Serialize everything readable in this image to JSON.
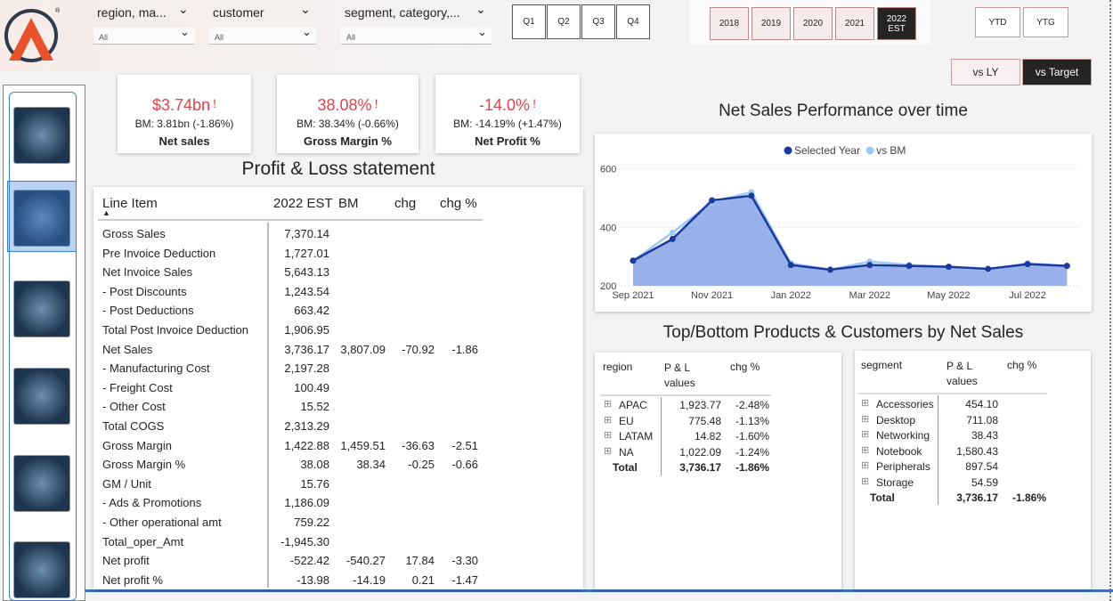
{
  "filters": [
    {
      "label": "region, ma...",
      "value": "All"
    },
    {
      "label": "customer",
      "value": "All"
    },
    {
      "label": "segment, category,...",
      "value": "All"
    }
  ],
  "quarters": [
    "Q1",
    "Q2",
    "Q3",
    "Q4"
  ],
  "years": [
    "2018",
    "2019",
    "2020",
    "2021",
    "2022 EST"
  ],
  "periods": [
    "YTD",
    "YTG"
  ],
  "compare": [
    "vs LY",
    "vs Target"
  ],
  "kpis": [
    {
      "value": "$3.74bn",
      "flag": "!",
      "bm": "BM: 3.81bn (-1.86%)",
      "label": "Net sales"
    },
    {
      "value": "38.08%",
      "flag": "!",
      "bm": "BM: 38.34% (-0.66%)",
      "label": "Gross Margin %"
    },
    {
      "value": "-14.0%",
      "flag": "!",
      "bm": "BM: -14.19% (+1.47%)",
      "label": "Net Profit %"
    }
  ],
  "pnl": {
    "title": "Profit & Loss statement",
    "columns": [
      "Line Item",
      "2022 EST",
      "BM",
      "chg",
      "chg %"
    ],
    "rows": [
      [
        "Gross Sales",
        "7,370.14"
      ],
      [
        "Pre Invoice Deduction",
        "1,727.01"
      ],
      [
        "Net Invoice Sales",
        "5,643.13"
      ],
      [
        "- Post Discounts",
        "1,243.54"
      ],
      [
        "- Post Deductions",
        "663.42"
      ],
      [
        "Total Post Invoice Deduction",
        "1,906.95"
      ],
      [
        "Net Sales",
        "3,736.17",
        "3,807.09",
        "-70.92",
        "-1.86"
      ],
      [
        "- Manufacturing Cost",
        "2,197.28"
      ],
      [
        "- Freight Cost",
        "100.49"
      ],
      [
        "- Other Cost",
        "15.52"
      ],
      [
        "Total COGS",
        "2,313.29"
      ],
      [
        "Gross Margin",
        "1,422.88",
        "1,459.51",
        "-36.63",
        "-2.51"
      ],
      [
        "Gross Margin %",
        "38.08",
        "38.34",
        "-0.25",
        "-0.66"
      ],
      [
        "GM / Unit",
        "15.76"
      ],
      [
        "- Ads & Promotions",
        "1,186.09"
      ],
      [
        "- Other operational amt",
        "759.22"
      ],
      [
        "Total_oper_Amt",
        "-1,945.30"
      ],
      [
        "Net profit",
        "-522.42",
        "-540.27",
        "17.84",
        "-3.30"
      ],
      [
        "Net profit %",
        "-13.98",
        "-14.19",
        "0.21",
        "-1.47"
      ]
    ]
  },
  "chart_data": {
    "type": "line",
    "title": "Net Sales Performance over time",
    "categories": [
      "Sep 2021",
      null,
      "Nov 2021",
      null,
      "Jan 2022",
      null,
      "Mar 2022",
      null,
      "May 2022",
      null,
      "Jul 2022",
      null
    ],
    "series": [
      {
        "name": "Selected Year",
        "color": "#1c3a9c",
        "values": [
          286,
          360,
          492,
          508,
          271,
          255,
          271,
          268,
          265,
          258,
          274,
          268
        ]
      },
      {
        "name": "vs BM",
        "color": "#9ccaf5",
        "values": [
          286,
          382,
          486,
          520,
          277,
          255,
          283,
          271,
          265,
          255,
          277,
          268
        ]
      }
    ],
    "ylim": [
      200,
      620
    ],
    "yticks": [
      200,
      400,
      600
    ],
    "grid": true
  },
  "topbottom": {
    "title": "Top/Bottom Products & Customers by Net Sales",
    "region": {
      "columns": [
        "region",
        "P & L values",
        "chg %"
      ],
      "rows": [
        [
          "APAC",
          "1,923.77",
          "-2.48%"
        ],
        [
          "EU",
          "775.48",
          "-1.13%"
        ],
        [
          "LATAM",
          "14.82",
          "-1.60%"
        ],
        [
          "NA",
          "1,022.09",
          "-1.24%"
        ]
      ],
      "total": [
        "Total",
        "3,736.17",
        "-1.86%"
      ]
    },
    "segment": {
      "columns": [
        "segment",
        "P & L values",
        "chg %"
      ],
      "rows": [
        [
          "Accessories",
          "454.10"
        ],
        [
          "Desktop",
          "711.08"
        ],
        [
          "Networking",
          "38.43"
        ],
        [
          "Notebook",
          "1,580.43"
        ],
        [
          "Peripherals",
          "897.54"
        ],
        [
          "Storage",
          "54.59"
        ]
      ],
      "total": [
        "Total",
        "3,736.17",
        "-1.86%"
      ]
    }
  }
}
